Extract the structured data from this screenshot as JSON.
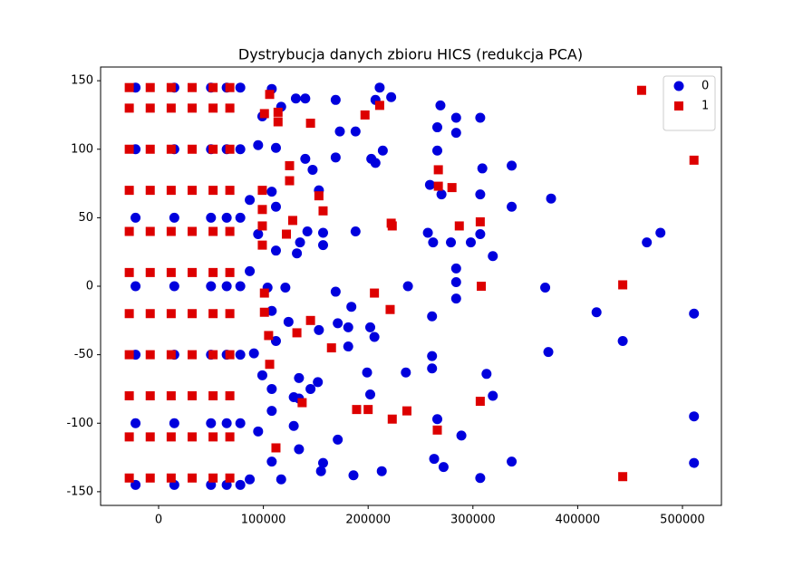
{
  "chart_data": {
    "type": "scatter",
    "title": "Dystrybucja danych zbioru HICS (redukcja PCA)",
    "xlim": [
      -55360,
      537200
    ],
    "ylim": [
      -160,
      160
    ],
    "xticks": [
      0,
      100000,
      200000,
      300000,
      400000,
      500000
    ],
    "yticks": [
      -150,
      -100,
      -50,
      0,
      50,
      100,
      150
    ],
    "legend": "upper right",
    "series": [
      {
        "name": "0",
        "color": "#0000dd",
        "marker": "circle",
        "x": [
          -22000,
          15000,
          50000,
          65000,
          78000,
          -22000,
          15000,
          50000,
          65000,
          78000,
          -22000,
          15000,
          50000,
          65000,
          78000,
          -22000,
          15000,
          50000,
          65000,
          78000,
          -22000,
          15000,
          50000,
          65000,
          78000,
          -22000,
          15000,
          50000,
          65000,
          78000,
          -22000,
          15000,
          50000,
          65000,
          78000,
          511000,
          511000,
          511000,
          479000,
          466000,
          443000,
          418000,
          369000,
          372000,
          374600,
          337000,
          337000,
          337000,
          319000,
          319000,
          313000,
          307000,
          309000,
          307000,
          307000,
          307000,
          298000,
          289000,
          284000,
          284000,
          284000,
          284000,
          284000,
          279000,
          269000,
          266000,
          266000,
          262000,
          270000,
          261000,
          261000,
          261000,
          266000,
          263000,
          272000,
          257000,
          259000,
          238000,
          236000,
          222000,
          211000,
          207000,
          203000,
          207000,
          214000,
          202000,
          206000,
          199000,
          202000,
          213000,
          186000,
          188000,
          188000,
          173000,
          169000,
          169000,
          169000,
          184000,
          181000,
          181000,
          171000,
          171000,
          157000,
          157000,
          157000,
          140000,
          140000,
          142000,
          153000,
          147000,
          153000,
          152000,
          134000,
          134000,
          134000,
          145000,
          131000,
          135000,
          132000,
          129000,
          155000,
          108000,
          117000,
          112000,
          108000,
          112000,
          112000,
          104000,
          121000,
          108000,
          124000,
          112000,
          108000,
          108000,
          129000,
          108000,
          99000,
          95000,
          95000,
          99000,
          91000,
          95000,
          117000,
          87000,
          87000,
          87000
        ],
        "y": [
          -145,
          -145,
          -145,
          -145,
          -145,
          -100,
          -100,
          -100,
          -100,
          -100,
          -50,
          -50,
          -50,
          -50,
          -50,
          0,
          0,
          0,
          0,
          0,
          50,
          50,
          50,
          50,
          50,
          100,
          100,
          100,
          100,
          100,
          145,
          145,
          145,
          145,
          145,
          -20,
          -95,
          -129,
          39,
          32,
          -40,
          -19,
          -1,
          -48,
          64,
          88,
          58,
          -128,
          22,
          -80,
          -64,
          123,
          86,
          67,
          38,
          -140,
          32,
          -109,
          123,
          112,
          13,
          3,
          -9,
          32,
          132,
          116,
          99,
          32,
          67,
          -22,
          -51,
          -60,
          -97,
          -126,
          -132,
          39,
          74,
          0,
          -63,
          138,
          145,
          136,
          93,
          90,
          99,
          -30,
          -37,
          -63,
          -79,
          -135,
          -138,
          113,
          40,
          113,
          94,
          136,
          -4,
          -15,
          -30,
          -44,
          -27,
          -112,
          39,
          30,
          -129,
          137,
          93,
          40,
          70,
          85,
          -32,
          -70,
          -67,
          -82,
          -119,
          -75,
          137,
          32,
          24,
          -102,
          -135,
          144,
          131,
          101,
          69,
          58,
          26,
          -1,
          -1,
          -18,
          -26,
          -40,
          -75,
          -91,
          -81,
          -128,
          -65,
          38,
          103,
          124,
          -49,
          -106,
          -141,
          -141,
          63,
          11
        ]
      },
      {
        "name": "1",
        "color": "#dd0000",
        "marker": "square",
        "x": [
          -28000,
          -8000,
          12000,
          32000,
          52000,
          68000,
          -28000,
          -8000,
          12000,
          32000,
          52000,
          68000,
          -28000,
          -8000,
          12000,
          32000,
          52000,
          68000,
          -28000,
          -8000,
          12000,
          32000,
          52000,
          68000,
          -28000,
          -8000,
          12000,
          32000,
          52000,
          68000,
          -28000,
          -8000,
          12000,
          32000,
          52000,
          68000,
          -28000,
          -8000,
          12000,
          32000,
          52000,
          68000,
          -28000,
          -8000,
          12000,
          32000,
          52000,
          68000,
          -28000,
          -8000,
          12000,
          32000,
          52000,
          68000,
          -28000,
          -8000,
          12000,
          32000,
          52000,
          68000,
          -28000,
          -8000,
          12000,
          32000,
          52000,
          68000,
          461000,
          511000,
          443000,
          443000,
          308000,
          307000,
          307000,
          287000,
          280000,
          267000,
          267000,
          266000,
          237000,
          223000,
          221000,
          222000,
          223000,
          206000,
          211000,
          197000,
          200000,
          189000,
          165000,
          157000,
          153000,
          145000,
          145000,
          137000,
          132000,
          128000,
          125000,
          125000,
          122000,
          114000,
          114000,
          112000,
          106000,
          106000,
          105000,
          101000,
          101000,
          99000,
          99000,
          99000,
          99000,
          101000
        ],
        "y": [
          -140,
          -140,
          -140,
          -140,
          -140,
          -140,
          -110,
          -110,
          -110,
          -110,
          -110,
          -110,
          -80,
          -80,
          -80,
          -80,
          -80,
          -80,
          -50,
          -50,
          -50,
          -50,
          -50,
          -50,
          -20,
          -20,
          -20,
          -20,
          -20,
          -20,
          10,
          10,
          10,
          10,
          10,
          10,
          40,
          40,
          40,
          40,
          40,
          40,
          70,
          70,
          70,
          70,
          70,
          70,
          100,
          100,
          100,
          100,
          100,
          100,
          130,
          130,
          130,
          130,
          130,
          130,
          145,
          145,
          145,
          145,
          145,
          145,
          143,
          92,
          1,
          -139,
          0,
          47,
          -84,
          44,
          72,
          85,
          73,
          -105,
          -91,
          -97,
          -17,
          46,
          44,
          -5,
          132,
          125,
          -90,
          -90,
          -45,
          55,
          66,
          -25,
          119,
          -85,
          -34,
          48,
          88,
          77,
          38,
          120,
          127,
          -118,
          140,
          -57,
          -36,
          -19,
          -5,
          56,
          44,
          30,
          70,
          126
        ]
      }
    ]
  }
}
